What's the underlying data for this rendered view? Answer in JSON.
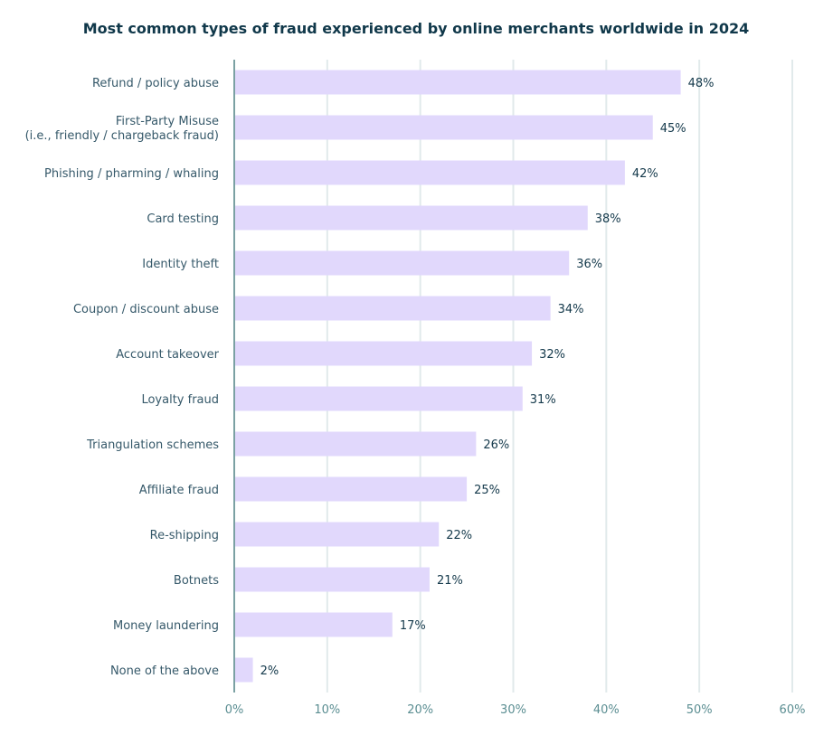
{
  "chart_data": {
    "type": "bar",
    "orientation": "horizontal",
    "title": "Most common types of fraud experienced by online merchants worldwide in 2024",
    "categories": [
      "Refund / policy abuse",
      "First-Party Misuse\n(i.e., friendly / chargeback fraud)",
      "Phishing / pharming / whaling",
      "Card testing",
      "Identity theft",
      "Coupon / discount abuse",
      "Account takeover",
      "Loyalty fraud",
      "Triangulation schemes",
      "Affiliate fraud",
      "Re-shipping",
      "Botnets",
      "Money laundering",
      "None of the above"
    ],
    "values": [
      48,
      45,
      42,
      38,
      36,
      34,
      32,
      31,
      26,
      25,
      22,
      21,
      17,
      2
    ],
    "value_labels": [
      "48%",
      "45%",
      "42%",
      "38%",
      "36%",
      "34%",
      "32%",
      "31%",
      "26%",
      "25%",
      "22%",
      "21%",
      "17%",
      "2%"
    ],
    "xlim": [
      0,
      60
    ],
    "xticks": [
      0,
      10,
      20,
      30,
      40,
      50,
      60
    ],
    "xtick_labels": [
      "0%",
      "10%",
      "20%",
      "30%",
      "40%",
      "50%",
      "60%"
    ],
    "grid": "vertical",
    "colors": {
      "bar": "#e1d8fc",
      "title": "#10384a",
      "value_label": "#14394b",
      "category_label": "#36596a",
      "tick_label": "#5b8e92",
      "axis": "#7ba1a3",
      "grid": "#e1eaeb"
    }
  }
}
